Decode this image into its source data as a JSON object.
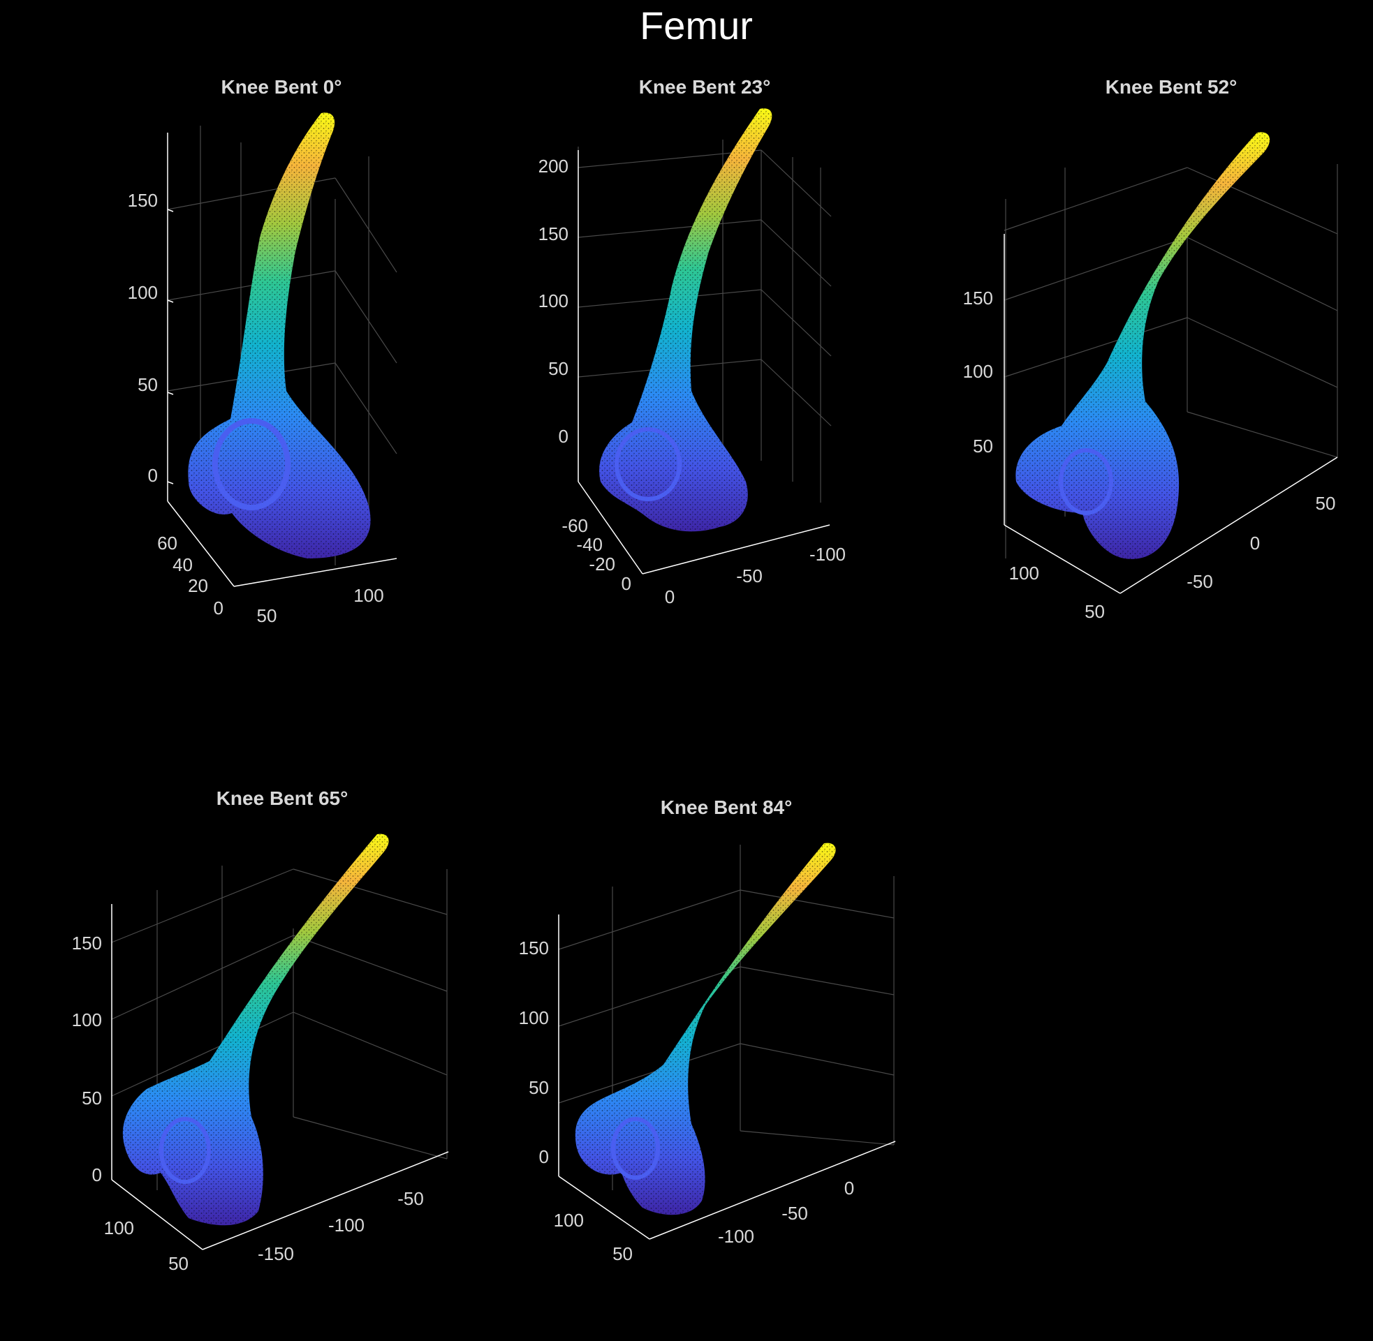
{
  "figure_title": "Femur",
  "colors": {
    "background": "#000000",
    "axes": "#ffffff",
    "grid": "#4a4a4a",
    "text": "#d9d9d9",
    "colormap": [
      "#3e26a8",
      "#4354e6",
      "#2c8bf5",
      "#12b4cf",
      "#2ec794",
      "#a2c93e",
      "#f7b53b",
      "#f9fb15"
    ]
  },
  "chart_data": [
    {
      "type": "scatter",
      "title": "Knee Bent 0°",
      "mode": "3d-point-cloud",
      "colormap": "parula",
      "grid": true,
      "axes": {
        "x": {
          "ticks": [
            "50",
            "100"
          ]
        },
        "y": {
          "ticks": [
            "0",
            "20",
            "40",
            "60"
          ]
        },
        "z": {
          "ticks": [
            "0",
            "50",
            "100",
            "150"
          ]
        }
      }
    },
    {
      "type": "scatter",
      "title": "Knee Bent 23°",
      "mode": "3d-point-cloud",
      "colormap": "parula",
      "grid": true,
      "axes": {
        "x": {
          "ticks": [
            "0",
            "-50",
            "-100"
          ]
        },
        "y": {
          "ticks": [
            "0",
            "-20",
            "-40",
            "-60"
          ]
        },
        "z": {
          "ticks": [
            "0",
            "50",
            "100",
            "150",
            "200"
          ]
        }
      }
    },
    {
      "type": "scatter",
      "title": "Knee Bent 52°",
      "mode": "3d-point-cloud",
      "colormap": "parula",
      "grid": true,
      "axes": {
        "x": {
          "ticks": [
            "-50",
            "0",
            "50"
          ]
        },
        "y": {
          "ticks": [
            "50",
            "100"
          ]
        },
        "z": {
          "ticks": [
            "50",
            "100",
            "150"
          ]
        }
      }
    },
    {
      "type": "scatter",
      "title": "Knee Bent 65°",
      "mode": "3d-point-cloud",
      "colormap": "parula",
      "grid": true,
      "axes": {
        "x": {
          "ticks": [
            "-150",
            "-100",
            "-50"
          ]
        },
        "y": {
          "ticks": [
            "50",
            "100"
          ]
        },
        "z": {
          "ticks": [
            "0",
            "50",
            "100",
            "150"
          ]
        }
      }
    },
    {
      "type": "scatter",
      "title": "Knee Bent 84°",
      "mode": "3d-point-cloud",
      "colormap": "parula",
      "grid": true,
      "axes": {
        "x": {
          "ticks": [
            "-100",
            "-50",
            "0"
          ]
        },
        "y": {
          "ticks": [
            "50",
            "100"
          ]
        },
        "z": {
          "ticks": [
            "0",
            "50",
            "100",
            "150"
          ]
        }
      }
    }
  ]
}
